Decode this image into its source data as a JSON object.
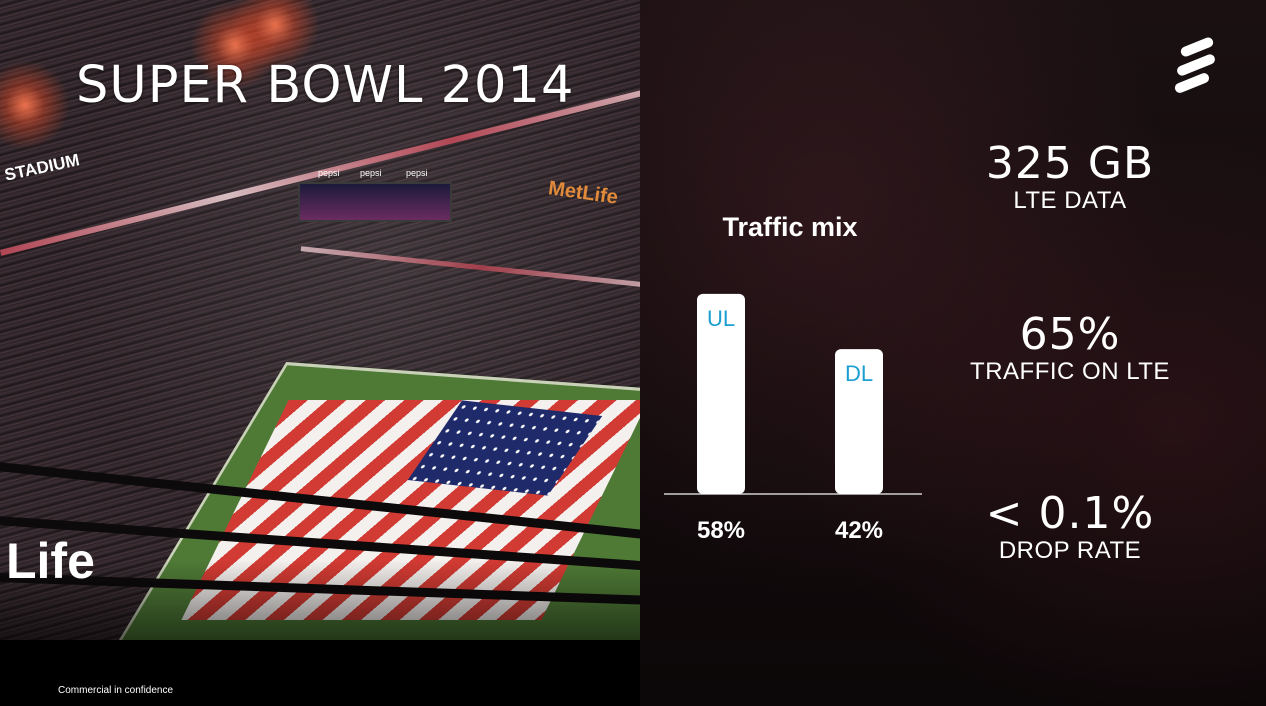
{
  "slide": {
    "title": "SUPER BOWL 2014",
    "footer": "Commercial in confidence"
  },
  "photo": {
    "signs": {
      "stadium": "STADIUM",
      "metlife": "MetLife",
      "life": "Life",
      "pepsi": [
        "pepsi",
        "pepsi",
        "pepsi"
      ]
    }
  },
  "stats": [
    {
      "value": "325 GB",
      "label": "LTE DATA"
    },
    {
      "value": "65%",
      "label": "TRAFFIC ON LTE"
    },
    {
      "value": "< 0.1%",
      "label": "DROP RATE"
    }
  ],
  "chart_data": {
    "type": "bar",
    "title": "Traffic mix",
    "categories": [
      "UL",
      "DL"
    ],
    "values": [
      58,
      42
    ],
    "value_labels": [
      "58%",
      "42%"
    ],
    "ylim": [
      0,
      100
    ],
    "bar_color": "#ffffff",
    "category_label_color": "#1a9fd0",
    "grid": false,
    "legend": "none"
  }
}
